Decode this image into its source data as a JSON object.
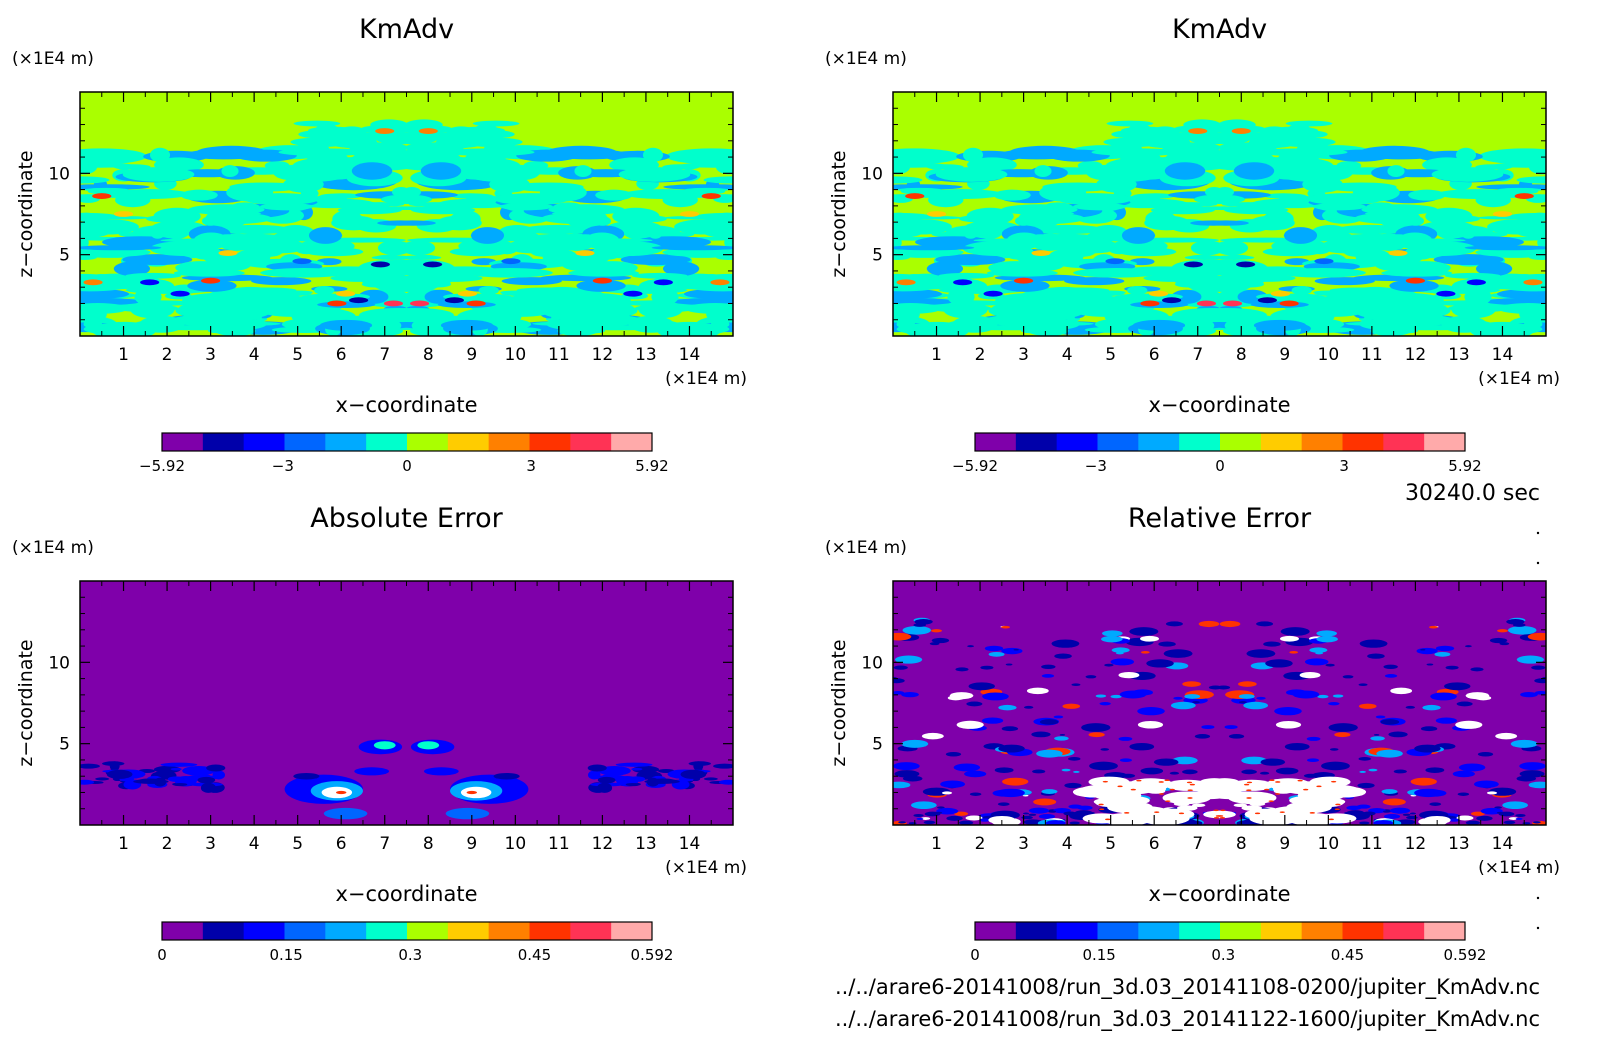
{
  "time_label": "30240.0 sec",
  "files": [
    "../../arare6-20141008/run_3d.03_20141108-0200/jupiter_KmAdv.nc",
    "../../arare6-20141008/run_3d.03_20141122-1600/jupiter_KmAdv.nc"
  ],
  "colors": {
    "field_background": "#aaff00",
    "error_background": "#7f00aa",
    "field_palette": [
      "#7f00aa",
      "#0000aa",
      "#0000ff",
      "#0066ff",
      "#00aaff",
      "#00ffcc",
      "#aaff00",
      "#ffcc00",
      "#ff8000",
      "#ff3300",
      "#ff3355",
      "#ffaaaa"
    ],
    "error_palette": [
      "#7f00aa",
      "#0000aa",
      "#0000ff",
      "#0066ff",
      "#00aaff",
      "#00ffcc",
      "#aaff00",
      "#ffcc00",
      "#ff8000",
      "#ff3300",
      "#ff3355",
      "#ffaaaa"
    ]
  },
  "chart_data": [
    {
      "type": "heatmap",
      "title": "KmAdv",
      "xlabel": "x−coordinate",
      "ylabel": "z−coordinate",
      "x_unit": "(×1E4 m)",
      "y_unit": "(×1E4 m)",
      "xlim": [
        0,
        15
      ],
      "ylim": [
        0,
        15
      ],
      "x_ticks": [
        "1",
        "2",
        "3",
        "4",
        "5",
        "6",
        "7",
        "8",
        "9",
        "10",
        "11",
        "12",
        "13",
        "14"
      ],
      "y_ticks": [
        "5",
        "10"
      ],
      "colorbar": {
        "min": -5.92,
        "max": 5.92,
        "ticks": [
          "−5.92",
          "−3",
          "0",
          "3",
          "5.92"
        ]
      },
      "field": "KmAdv"
    },
    {
      "type": "heatmap",
      "title": "KmAdv",
      "xlabel": "x−coordinate",
      "ylabel": "z−coordinate",
      "x_unit": "(×1E4 m)",
      "y_unit": "(×1E4 m)",
      "xlim": [
        0,
        15
      ],
      "ylim": [
        0,
        15
      ],
      "x_ticks": [
        "1",
        "2",
        "3",
        "4",
        "5",
        "6",
        "7",
        "8",
        "9",
        "10",
        "11",
        "12",
        "13",
        "14"
      ],
      "y_ticks": [
        "5",
        "10"
      ],
      "colorbar": {
        "min": -5.92,
        "max": 5.92,
        "ticks": [
          "−5.92",
          "−3",
          "0",
          "3",
          "5.92"
        ]
      },
      "field": "KmAdv"
    },
    {
      "type": "heatmap",
      "title": "Absolute Error",
      "xlabel": "x−coordinate",
      "ylabel": "z−coordinate",
      "x_unit": "(×1E4 m)",
      "y_unit": "(×1E4 m)",
      "xlim": [
        0,
        15
      ],
      "ylim": [
        0,
        15
      ],
      "x_ticks": [
        "1",
        "2",
        "3",
        "4",
        "5",
        "6",
        "7",
        "8",
        "9",
        "10",
        "11",
        "12",
        "13",
        "14"
      ],
      "y_ticks": [
        "5",
        "10"
      ],
      "colorbar": {
        "min": 0,
        "max": 0.592,
        "ticks": [
          "0",
          "0.15",
          "0.3",
          "0.45",
          "0.592"
        ]
      },
      "field": "absolute"
    },
    {
      "type": "heatmap",
      "title": "Relative Error",
      "xlabel": "x−coordinate",
      "ylabel": "z−coordinate",
      "x_unit": "(×1E4 m)",
      "y_unit": "(×1E4 m)",
      "xlim": [
        0,
        15
      ],
      "ylim": [
        0,
        15
      ],
      "x_ticks": [
        "1",
        "2",
        "3",
        "4",
        "5",
        "6",
        "7",
        "8",
        "9",
        "10",
        "11",
        "12",
        "13",
        "14"
      ],
      "y_ticks": [
        "5",
        "10"
      ],
      "colorbar": {
        "min": 0,
        "max": 0.592,
        "ticks": [
          "0",
          "0.15",
          "0.3",
          "0.45",
          "0.592"
        ]
      },
      "field": "relative"
    }
  ]
}
